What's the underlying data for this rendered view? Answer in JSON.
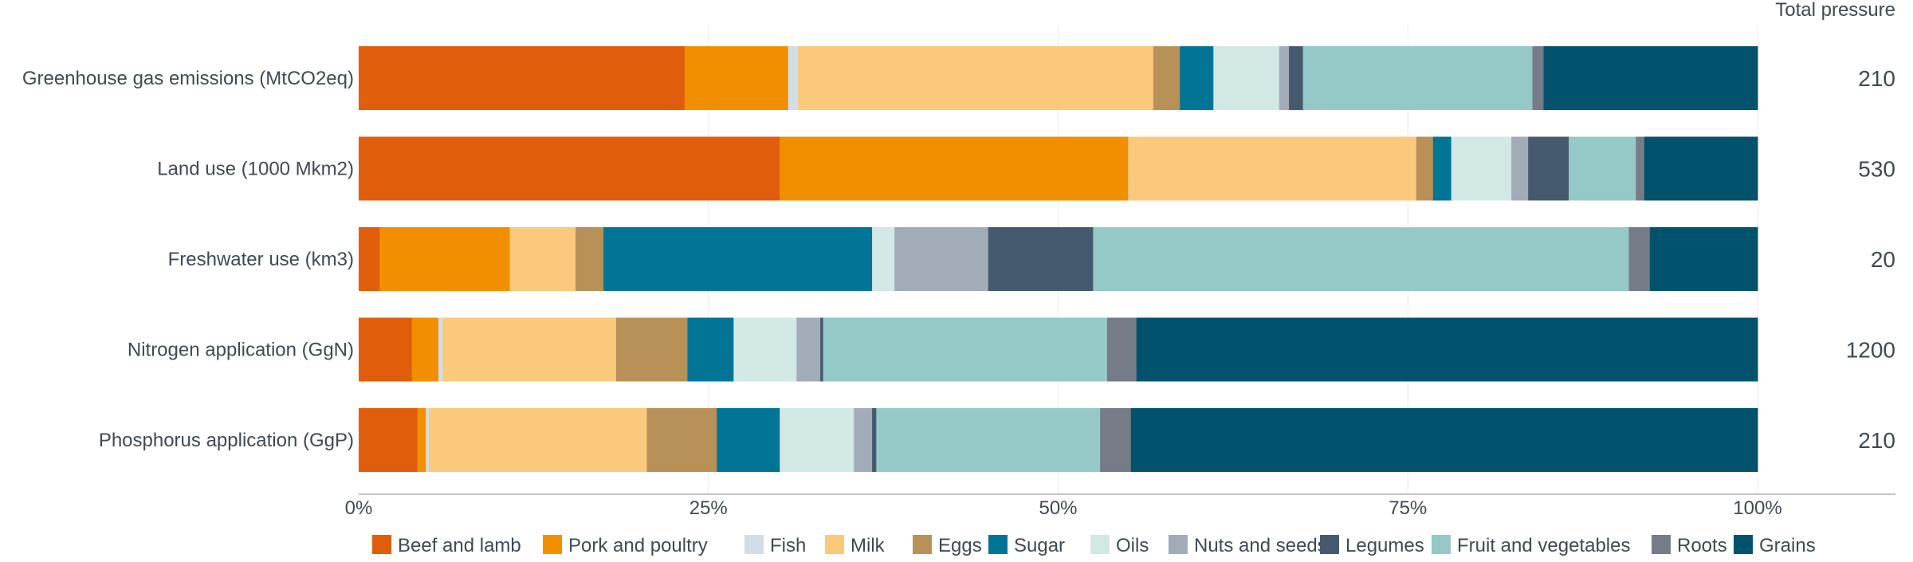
{
  "chart_data": {
    "type": "bar",
    "orientation": "horizontal",
    "stacked": true,
    "normalized": true,
    "title": "",
    "xlabel": "",
    "ylabel": "",
    "xlim": [
      0,
      100
    ],
    "x_ticks": [
      "0%",
      "25%",
      "50%",
      "75%",
      "100%"
    ],
    "grid": true,
    "legend_position": "bottom",
    "total_header": "Total pressure",
    "categories": [
      "Greenhouse gas emissions (MtCO2eq)",
      "Land use (1000 Mkm2)",
      "Freshwater use (km3)",
      "Nitrogen application (GgN)",
      "Phosphorus application (GgP)"
    ],
    "totals": [
      "210",
      "530",
      "20",
      "1200",
      "210"
    ],
    "series": [
      {
        "name": "Beef and lamb",
        "color": "#e05e0b",
        "values": [
          23.3,
          30.1,
          1.5,
          3.8,
          4.2
        ]
      },
      {
        "name": "Pork and poultry",
        "color": "#f28f00",
        "values": [
          7.4,
          24.9,
          9.3,
          1.9,
          0.6
        ]
      },
      {
        "name": "Fish",
        "color": "#d3dde6",
        "values": [
          0.7,
          0.0,
          0.0,
          0.3,
          0.2
        ]
      },
      {
        "name": "Milk",
        "color": "#fbc97c",
        "values": [
          25.4,
          20.6,
          4.7,
          12.4,
          15.6
        ]
      },
      {
        "name": "Eggs",
        "color": "#b89158",
        "values": [
          1.9,
          1.2,
          2.0,
          5.1,
          5.0
        ]
      },
      {
        "name": "Sugar",
        "color": "#007596",
        "values": [
          2.4,
          1.3,
          19.2,
          3.3,
          4.5
        ]
      },
      {
        "name": "Oils",
        "color": "#d2e8e5",
        "values": [
          4.7,
          4.3,
          1.6,
          4.5,
          5.3
        ]
      },
      {
        "name": "Nuts and seeds",
        "color": "#a2acb8",
        "values": [
          0.7,
          1.2,
          6.7,
          1.7,
          1.3
        ]
      },
      {
        "name": "Legumes",
        "color": "#455a6e",
        "values": [
          1.0,
          2.9,
          7.5,
          0.2,
          0.3
        ]
      },
      {
        "name": "Fruit and vegetables",
        "color": "#95c9c7",
        "values": [
          16.4,
          4.8,
          38.3,
          20.3,
          16.0
        ]
      },
      {
        "name": "Roots",
        "color": "#757c87",
        "values": [
          0.8,
          0.6,
          1.5,
          2.1,
          2.2
        ]
      },
      {
        "name": "Grains",
        "color": "#01536d",
        "values": [
          15.3,
          8.1,
          7.7,
          44.4,
          44.8
        ]
      }
    ]
  }
}
